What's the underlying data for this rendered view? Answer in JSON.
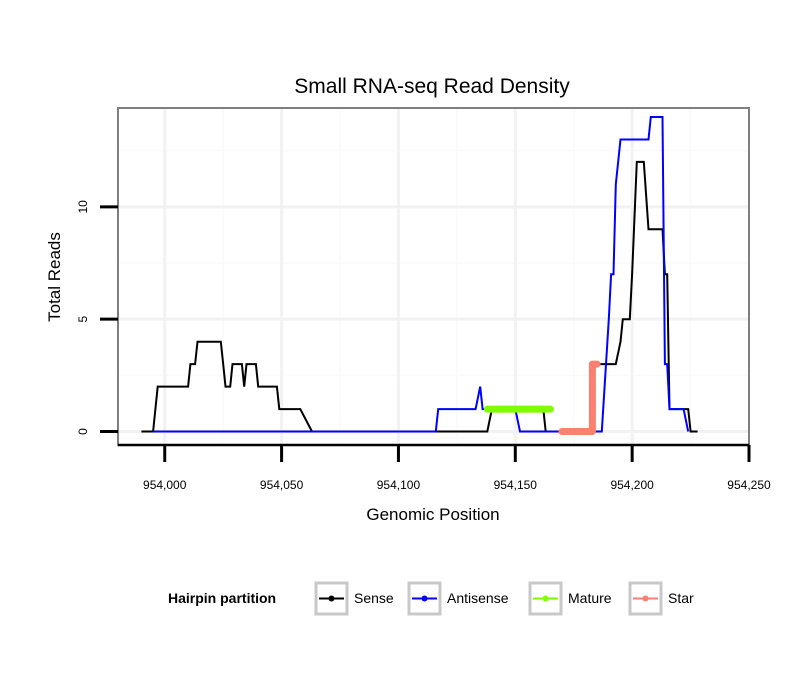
{
  "chart_data": {
    "type": "line",
    "title": "Small RNA-seq Read Density",
    "xlabel": "Genomic Position",
    "ylabel": "Total Reads",
    "xlim": [
      953980,
      954250
    ],
    "ylim": [
      -0.6,
      14.4
    ],
    "x_ticks": [
      954000,
      954050,
      954100,
      954150,
      954200,
      954250
    ],
    "x_tick_labels": [
      "954,000",
      "954,050",
      "954,100",
      "954,150",
      "954,200",
      "954,250"
    ],
    "y_ticks": [
      0,
      5,
      10
    ],
    "y_tick_labels": [
      "0",
      "5",
      "10"
    ],
    "grid": true,
    "legend": {
      "title": "Hairpin partition",
      "position": "bottom",
      "entries": [
        "Sense",
        "Antisense",
        "Mature",
        "Star"
      ]
    },
    "series": [
      {
        "name": "Sense",
        "color": "#000000",
        "points": [
          [
            953990,
            0
          ],
          [
            953995,
            0
          ],
          [
            953997,
            2
          ],
          [
            954000,
            2
          ],
          [
            954004,
            2
          ],
          [
            954008,
            2
          ],
          [
            954010,
            2
          ],
          [
            954011,
            3
          ],
          [
            954013,
            3
          ],
          [
            954014,
            4
          ],
          [
            954017,
            4
          ],
          [
            954020,
            4
          ],
          [
            954024,
            4
          ],
          [
            954025,
            3
          ],
          [
            954026,
            2
          ],
          [
            954028,
            2
          ],
          [
            954029,
            3
          ],
          [
            954033,
            3
          ],
          [
            954034,
            2
          ],
          [
            954035,
            3
          ],
          [
            954039,
            3
          ],
          [
            954040,
            2
          ],
          [
            954044,
            2
          ],
          [
            954048,
            2
          ],
          [
            954049,
            1
          ],
          [
            954058,
            1
          ],
          [
            954063,
            0
          ],
          [
            954090,
            0
          ],
          [
            954138,
            0
          ],
          [
            954140,
            1
          ],
          [
            954152,
            1
          ],
          [
            954162,
            1
          ],
          [
            954163,
            0
          ],
          [
            954166,
            0
          ],
          [
            954180,
            0
          ],
          [
            954183,
            0
          ],
          [
            954184,
            3
          ],
          [
            954188,
            3
          ],
          [
            954193,
            3
          ],
          [
            954195,
            4
          ],
          [
            954196,
            5
          ],
          [
            954199,
            5
          ],
          [
            954200,
            7
          ],
          [
            954202,
            12
          ],
          [
            954205,
            12
          ],
          [
            954207,
            9
          ],
          [
            954209,
            9
          ],
          [
            954213,
            9
          ],
          [
            954214,
            7
          ],
          [
            954215,
            7
          ],
          [
            954216,
            1
          ],
          [
            954220,
            1
          ],
          [
            954224,
            1
          ],
          [
            954225,
            0
          ],
          [
            954228,
            0
          ]
        ]
      },
      {
        "name": "Antisense",
        "color": "#0000ff",
        "points": [
          [
            953995,
            0
          ],
          [
            954060,
            0
          ],
          [
            954116,
            0
          ],
          [
            954117,
            1
          ],
          [
            954133,
            1
          ],
          [
            954135,
            2
          ],
          [
            954136,
            1
          ],
          [
            954150,
            1
          ],
          [
            954152,
            0
          ],
          [
            954187,
            0
          ],
          [
            954190,
            5
          ],
          [
            954191,
            7
          ],
          [
            954192,
            7
          ],
          [
            954193,
            11
          ],
          [
            954195,
            13
          ],
          [
            954207,
            13
          ],
          [
            954208,
            14
          ],
          [
            954213,
            14
          ],
          [
            954214,
            3
          ],
          [
            954215,
            3
          ],
          [
            954216,
            1
          ],
          [
            954222,
            1
          ],
          [
            954224,
            0
          ]
        ]
      },
      {
        "name": "Mature",
        "color": "#7fff00",
        "points": [
          [
            954138,
            1
          ],
          [
            954165,
            1
          ]
        ]
      },
      {
        "name": "Star",
        "color": "#fa8072",
        "points": [
          [
            954170,
            0
          ],
          [
            954183,
            0
          ],
          [
            954183,
            3
          ],
          [
            954185,
            3
          ]
        ]
      }
    ]
  }
}
